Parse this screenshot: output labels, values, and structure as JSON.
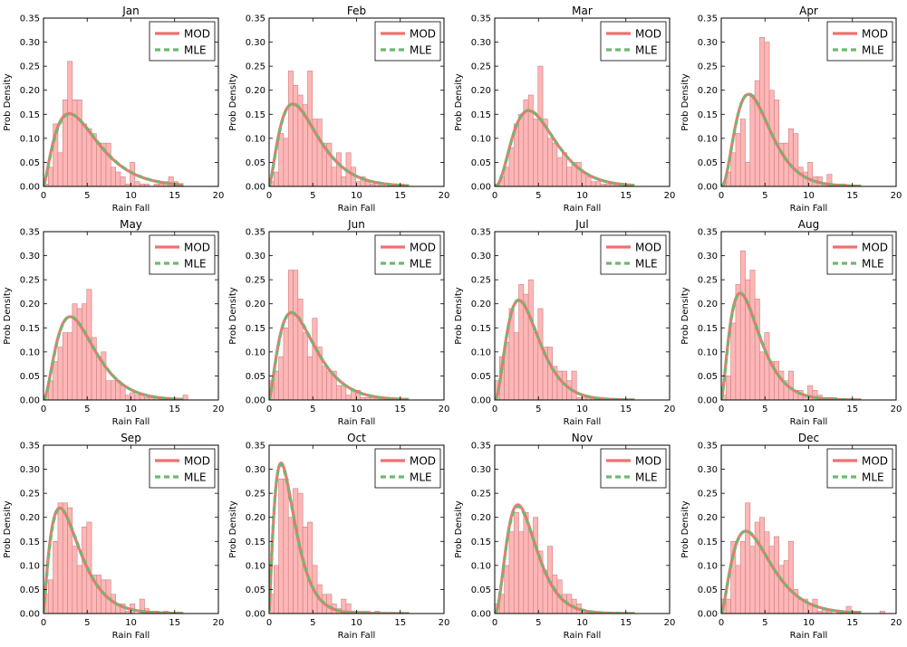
{
  "colors": {
    "hist_fill": "#ffb6b6",
    "hist_edge": "#c98080",
    "mod_line": "#f07070",
    "mle_line": "#6fb86f"
  },
  "chart_data": {
    "type": "grid-of-histograms",
    "grid": {
      "rows": 3,
      "cols": 4
    },
    "x_ticks": [
      0,
      5,
      10,
      15,
      20
    ],
    "y_ticks": [
      "0.00",
      "0.05",
      "0.10",
      "0.15",
      "0.20",
      "0.25",
      "0.30",
      "0.35"
    ],
    "xlim": [
      0,
      20
    ],
    "ylim": [
      0,
      0.35
    ],
    "xlabel": "Rain Fall",
    "ylabel": "Prob Density",
    "legend": {
      "placement": "top-right",
      "entries": [
        "MOD",
        "MLE"
      ]
    },
    "bin_width": 0.55,
    "curve_x_max": 16,
    "panels": [
      {
        "title": "Jan",
        "mod": {
          "k": 2.4,
          "theta": 2.1
        },
        "mle": {
          "k": 2.45,
          "theta": 2.08
        },
        "hist": [
          0.005,
          0.04,
          0.13,
          0.07,
          0.18,
          0.26,
          0.18,
          0.18,
          0.13,
          0.12,
          0.11,
          0.09,
          0.09,
          0.09,
          0.04,
          0.03,
          0.02,
          0.005,
          0.05,
          0.01,
          0.005,
          0.005,
          0.0,
          0.005,
          0.005,
          0.01,
          0.02,
          0.01,
          0.005
        ]
      },
      {
        "title": "Feb",
        "mod": {
          "k": 2.5,
          "theta": 1.8
        },
        "mle": {
          "k": 2.55,
          "theta": 1.77
        },
        "hist": [
          0.01,
          0.03,
          0.11,
          0.1,
          0.24,
          0.21,
          0.19,
          0.17,
          0.24,
          0.14,
          0.14,
          0.09,
          0.09,
          0.04,
          0.07,
          0.02,
          0.07,
          0.04,
          0.01,
          0.02,
          0.01,
          0.005,
          0.01,
          0.005,
          0.0,
          0.005,
          0.005,
          0.005
        ]
      },
      {
        "title": "Mar",
        "mod": {
          "k": 3.5,
          "theta": 1.55
        },
        "mle": {
          "k": 3.55,
          "theta": 1.53
        },
        "hist": [
          0.005,
          0.02,
          0.04,
          0.08,
          0.13,
          0.15,
          0.18,
          0.19,
          0.14,
          0.25,
          0.14,
          0.1,
          0.09,
          0.06,
          0.07,
          0.04,
          0.05,
          0.05,
          0.03,
          0.02,
          0.01,
          0.01,
          0.005,
          0.005,
          0.005,
          0.005
        ]
      },
      {
        "title": "Apr",
        "mod": {
          "k": 3.4,
          "theta": 1.3
        },
        "mle": {
          "k": 3.45,
          "theta": 1.28
        },
        "hist": [
          0.005,
          0.03,
          0.07,
          0.11,
          0.14,
          0.05,
          0.19,
          0.22,
          0.31,
          0.3,
          0.2,
          0.18,
          0.09,
          0.09,
          0.12,
          0.11,
          0.04,
          0.03,
          0.05,
          0.02,
          0.02,
          0.005,
          0.025,
          0.005,
          0.005,
          0.005
        ]
      },
      {
        "title": "May",
        "mod": {
          "k": 2.9,
          "theta": 1.6
        },
        "mle": {
          "k": 2.95,
          "theta": 1.58
        },
        "hist": [
          0.01,
          0.04,
          0.08,
          0.11,
          0.14,
          0.14,
          0.2,
          0.19,
          0.2,
          0.23,
          0.13,
          0.09,
          0.1,
          0.04,
          0.04,
          0.04,
          0.03,
          0.01,
          0.015,
          0.01,
          0.01,
          0.005,
          0.005,
          0.005,
          0.005,
          0.005,
          0.0,
          0.0,
          0.0,
          0.01
        ]
      },
      {
        "title": "Jun",
        "mod": {
          "k": 2.5,
          "theta": 1.7
        },
        "mle": {
          "k": 2.55,
          "theta": 1.67
        },
        "hist": [
          0.04,
          0.06,
          0.09,
          0.15,
          0.27,
          0.27,
          0.21,
          0.14,
          0.09,
          0.17,
          0.11,
          0.07,
          0.06,
          0.06,
          0.03,
          0.03,
          0.01,
          0.02,
          0.02,
          0.005,
          0.005,
          0.005,
          0.005,
          0.005
        ]
      },
      {
        "title": "Jul",
        "mod": {
          "k": 3.2,
          "theta": 1.25
        },
        "mle": {
          "k": 3.25,
          "theta": 1.23
        },
        "hist": [
          0.04,
          0.09,
          0.12,
          0.19,
          0.14,
          0.24,
          0.22,
          0.25,
          0.14,
          0.19,
          0.11,
          0.11,
          0.07,
          0.06,
          0.06,
          0.04,
          0.06,
          0.005,
          0.01,
          0.005,
          0.005,
          0.005
        ]
      },
      {
        "title": "Aug",
        "mod": {
          "k": 2.6,
          "theta": 1.35
        },
        "mle": {
          "k": 2.65,
          "theta": 1.33
        },
        "hist": [
          0.01,
          0.05,
          0.16,
          0.24,
          0.31,
          0.25,
          0.27,
          0.21,
          0.1,
          0.14,
          0.08,
          0.08,
          0.06,
          0.04,
          0.06,
          0.02,
          0.02,
          0.01,
          0.03,
          0.02,
          0.01,
          0.005,
          0.005,
          0.005
        ]
      },
      {
        "title": "Sep",
        "mod": {
          "k": 2.2,
          "theta": 1.55
        },
        "mle": {
          "k": 2.25,
          "theta": 1.53
        },
        "hist": [
          0.04,
          0.07,
          0.15,
          0.23,
          0.23,
          0.22,
          0.14,
          0.1,
          0.18,
          0.19,
          0.08,
          0.08,
          0.07,
          0.07,
          0.04,
          0.02,
          0.02,
          0.005,
          0.02,
          0.0,
          0.03,
          0.01,
          0.005,
          0.005,
          0.0,
          0.005
        ]
      },
      {
        "title": "Oct",
        "mod": {
          "k": 2.3,
          "theta": 1.05
        },
        "mle": {
          "k": 2.25,
          "theta": 1.08
        },
        "hist": [
          0.04,
          0.1,
          0.28,
          0.28,
          0.2,
          0.26,
          0.25,
          0.18,
          0.19,
          0.1,
          0.06,
          0.04,
          0.04,
          0.02,
          0.01,
          0.03,
          0.02,
          0.005,
          0.005,
          0.005,
          0.005,
          0.0,
          0.005
        ]
      },
      {
        "title": "Nov",
        "mod": {
          "k": 3.4,
          "theta": 1.1
        },
        "mle": {
          "k": 3.35,
          "theta": 1.13
        },
        "hist": [
          0.02,
          0.04,
          0.1,
          0.17,
          0.21,
          0.17,
          0.21,
          0.17,
          0.2,
          0.13,
          0.09,
          0.14,
          0.08,
          0.07,
          0.04,
          0.04,
          0.03,
          0.02,
          0.005,
          0.005,
          0.005
        ]
      },
      {
        "title": "Dec",
        "mod": {
          "k": 2.6,
          "theta": 1.75
        },
        "mle": {
          "k": 2.65,
          "theta": 1.72
        },
        "hist": [
          0.03,
          0.03,
          0.15,
          0.1,
          0.15,
          0.23,
          0.14,
          0.19,
          0.2,
          0.17,
          0.14,
          0.16,
          0.1,
          0.11,
          0.15,
          0.05,
          0.03,
          0.03,
          0.02,
          0.03,
          0.005,
          0.01,
          0.005,
          0.0,
          0.005,
          0.0,
          0.015,
          0.005,
          0.005,
          0.0,
          0.0,
          0.0,
          0.0,
          0.005
        ]
      }
    ]
  }
}
